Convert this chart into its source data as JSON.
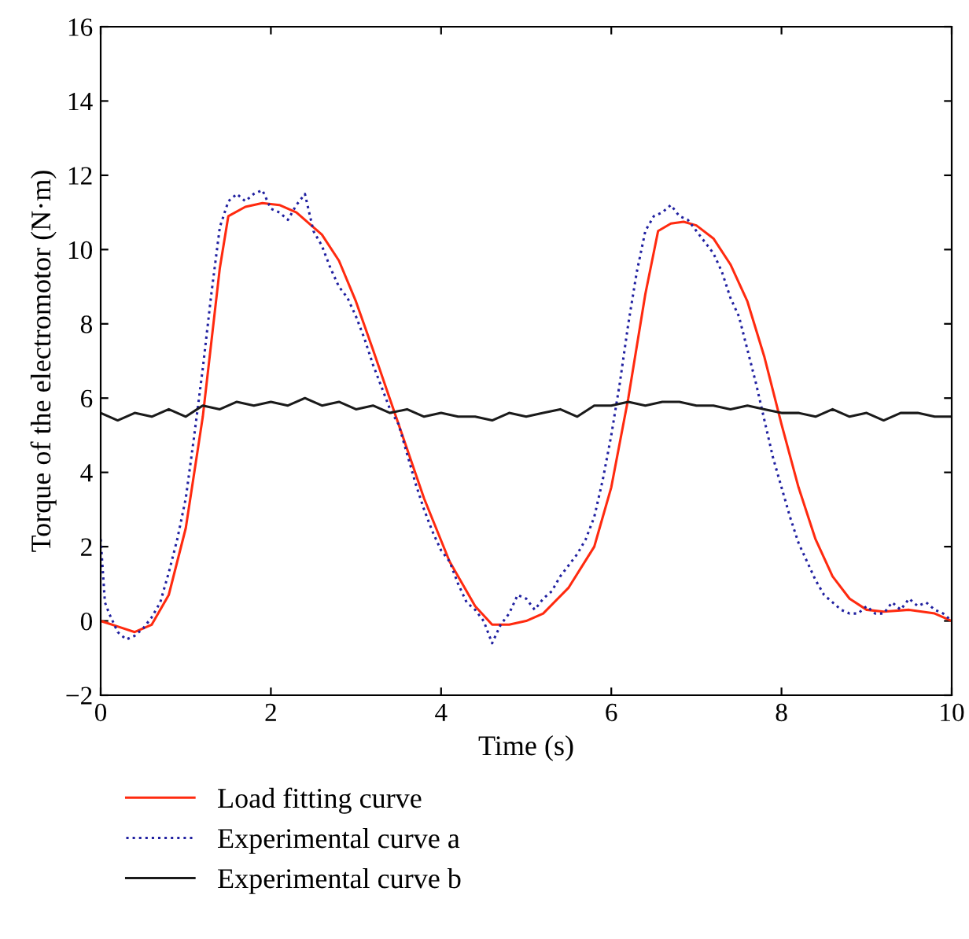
{
  "chart_data": {
    "type": "line",
    "xlabel": "Time (s)",
    "ylabel": "Torque of the electromotor (N·m)",
    "xlim": [
      0,
      10
    ],
    "ylim": [
      -2,
      16
    ],
    "xticks": [
      0,
      2,
      4,
      6,
      8,
      10
    ],
    "yticks": [
      {
        "value": -2,
        "label": "−2"
      },
      0,
      2,
      4,
      6,
      8,
      10,
      12,
      14,
      16
    ],
    "grid": false,
    "legend": "bottom left",
    "series": [
      {
        "name": "Load fitting curve",
        "color": "#ff2a0f",
        "line_style": "solid",
        "x": [
          0,
          0.2,
          0.4,
          0.6,
          0.8,
          1.0,
          1.2,
          1.4,
          1.5,
          1.7,
          1.9,
          2.1,
          2.3,
          2.6,
          2.8,
          3.0,
          3.2,
          3.5,
          3.8,
          4.1,
          4.4,
          4.6,
          4.8,
          5.0,
          5.2,
          5.5,
          5.8,
          6.0,
          6.2,
          6.4,
          6.55,
          6.7,
          6.85,
          7.0,
          7.2,
          7.4,
          7.6,
          7.8,
          8.0,
          8.2,
          8.4,
          8.6,
          8.8,
          9.0,
          9.2,
          9.5,
          9.8,
          10
        ],
        "values": [
          0,
          -0.15,
          -0.3,
          -0.1,
          0.7,
          2.5,
          5.5,
          9.5,
          10.9,
          11.15,
          11.25,
          11.2,
          11.0,
          10.4,
          9.7,
          8.6,
          7.3,
          5.3,
          3.3,
          1.6,
          0.4,
          -0.1,
          -0.1,
          0.0,
          0.2,
          0.9,
          2.0,
          3.6,
          6.0,
          8.8,
          10.5,
          10.7,
          10.75,
          10.65,
          10.3,
          9.6,
          8.6,
          7.1,
          5.3,
          3.6,
          2.2,
          1.2,
          0.6,
          0.3,
          0.25,
          0.3,
          0.2,
          0.0
        ]
      },
      {
        "name": "Experimental curve a",
        "color": "#2020a0",
        "line_style": "dotted",
        "x": [
          0,
          0.05,
          0.1,
          0.2,
          0.3,
          0.4,
          0.5,
          0.6,
          0.7,
          0.8,
          0.9,
          1.0,
          1.1,
          1.2,
          1.3,
          1.4,
          1.5,
          1.6,
          1.7,
          1.8,
          1.9,
          2.0,
          2.1,
          2.2,
          2.3,
          2.4,
          2.5,
          2.6,
          2.7,
          2.8,
          2.9,
          3.0,
          3.1,
          3.2,
          3.3,
          3.4,
          3.5,
          3.6,
          3.7,
          3.8,
          3.9,
          4.0,
          4.1,
          4.2,
          4.3,
          4.4,
          4.5,
          4.6,
          4.7,
          4.8,
          4.9,
          5.0,
          5.1,
          5.2,
          5.3,
          5.4,
          5.5,
          5.6,
          5.7,
          5.8,
          5.9,
          6.0,
          6.1,
          6.2,
          6.3,
          6.4,
          6.5,
          6.6,
          6.7,
          6.8,
          6.9,
          7.0,
          7.1,
          7.2,
          7.3,
          7.4,
          7.5,
          7.6,
          7.7,
          7.8,
          7.9,
          8.0,
          8.1,
          8.2,
          8.3,
          8.4,
          8.5,
          8.6,
          8.7,
          8.8,
          8.9,
          9.0,
          9.1,
          9.2,
          9.3,
          9.4,
          9.5,
          9.6,
          9.7,
          9.8,
          9.9,
          10
        ],
        "values": [
          2.2,
          0.5,
          0.2,
          -0.3,
          -0.5,
          -0.4,
          -0.2,
          0.1,
          0.5,
          1.3,
          2.2,
          3.3,
          5.0,
          6.8,
          8.8,
          10.6,
          11.3,
          11.5,
          11.3,
          11.5,
          11.6,
          11.1,
          11.0,
          10.8,
          11.2,
          11.5,
          10.5,
          10.1,
          9.5,
          9.0,
          8.7,
          8.2,
          7.6,
          6.9,
          6.3,
          5.7,
          5.3,
          4.5,
          3.7,
          3.0,
          2.4,
          1.9,
          1.6,
          1.0,
          0.5,
          0.3,
          0.0,
          -0.6,
          -0.1,
          0.2,
          0.7,
          0.6,
          0.3,
          0.6,
          0.8,
          1.2,
          1.5,
          1.8,
          2.2,
          2.8,
          3.8,
          5.0,
          6.4,
          8.0,
          9.4,
          10.5,
          10.9,
          11.0,
          11.2,
          10.9,
          10.8,
          10.5,
          10.2,
          9.9,
          9.4,
          8.7,
          8.2,
          7.3,
          6.4,
          5.4,
          4.4,
          3.6,
          2.8,
          2.1,
          1.6,
          1.1,
          0.7,
          0.5,
          0.3,
          0.2,
          0.2,
          0.4,
          0.2,
          0.2,
          0.5,
          0.3,
          0.6,
          0.4,
          0.5,
          0.3,
          0.2,
          0.0
        ]
      },
      {
        "name": "Experimental curve b",
        "color": "#1a1a1a",
        "line_style": "solid",
        "x": [
          0,
          0.2,
          0.4,
          0.6,
          0.8,
          1.0,
          1.2,
          1.4,
          1.6,
          1.8,
          2.0,
          2.2,
          2.4,
          2.6,
          2.8,
          3.0,
          3.2,
          3.4,
          3.6,
          3.8,
          4.0,
          4.2,
          4.4,
          4.6,
          4.8,
          5.0,
          5.2,
          5.4,
          5.6,
          5.8,
          6.0,
          6.2,
          6.4,
          6.6,
          6.8,
          7.0,
          7.2,
          7.4,
          7.6,
          7.8,
          8.0,
          8.2,
          8.4,
          8.6,
          8.8,
          9.0,
          9.2,
          9.4,
          9.6,
          9.8,
          10
        ],
        "values": [
          5.6,
          5.4,
          5.6,
          5.5,
          5.7,
          5.5,
          5.8,
          5.7,
          5.9,
          5.8,
          5.9,
          5.8,
          6.0,
          5.8,
          5.9,
          5.7,
          5.8,
          5.6,
          5.7,
          5.5,
          5.6,
          5.5,
          5.5,
          5.4,
          5.6,
          5.5,
          5.6,
          5.7,
          5.5,
          5.8,
          5.8,
          5.9,
          5.8,
          5.9,
          5.9,
          5.8,
          5.8,
          5.7,
          5.8,
          5.7,
          5.6,
          5.6,
          5.5,
          5.7,
          5.5,
          5.6,
          5.4,
          5.6,
          5.6,
          5.5,
          5.5
        ]
      }
    ]
  }
}
